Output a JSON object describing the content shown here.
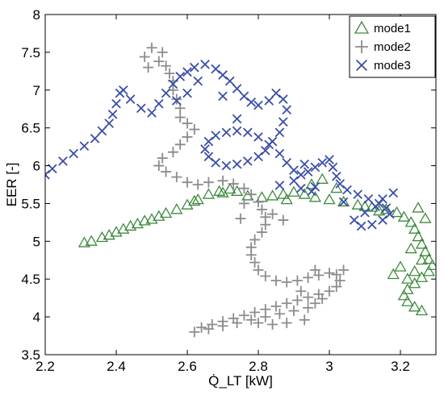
{
  "chart_data": {
    "type": "scatter",
    "title": "",
    "xlabel": "Q̇_LT [kW]",
    "ylabel": "EER [-]",
    "xlim": [
      2.2,
      3.3
    ],
    "ylim": [
      3.5,
      8
    ],
    "xticks": [
      2.2,
      2.4,
      2.6,
      2.8,
      3,
      3.2
    ],
    "yticks": [
      3.5,
      4,
      4.5,
      5,
      5.5,
      6,
      6.5,
      7,
      7.5,
      8
    ],
    "xtick_labels": [
      "2.2",
      "2.4",
      "2.6",
      "2.8",
      "3",
      "3.2"
    ],
    "ytick_labels": [
      "3.5",
      "4",
      "4.5",
      "5",
      "5.5",
      "6",
      "6.5",
      "7",
      "7.5",
      "8"
    ],
    "grid": false,
    "legend_position": "top-right",
    "series": [
      {
        "name": "mode1",
        "marker": "triangle",
        "color": "#3d8a3d",
        "points": [
          [
            2.31,
            4.98
          ],
          [
            2.33,
            5.0
          ],
          [
            2.36,
            5.05
          ],
          [
            2.4,
            5.12
          ],
          [
            2.44,
            5.2
          ],
          [
            2.48,
            5.27
          ],
          [
            2.52,
            5.33
          ],
          [
            2.54,
            5.37
          ],
          [
            2.57,
            5.42
          ],
          [
            2.6,
            5.48
          ],
          [
            2.63,
            5.55
          ],
          [
            2.66,
            5.62
          ],
          [
            2.69,
            5.66
          ],
          [
            2.72,
            5.69
          ],
          [
            2.74,
            5.66
          ],
          [
            2.77,
            5.6
          ],
          [
            2.81,
            5.58
          ],
          [
            2.84,
            5.6
          ],
          [
            2.87,
            5.62
          ],
          [
            2.9,
            5.65
          ],
          [
            2.93,
            5.62
          ],
          [
            2.96,
            5.58
          ],
          [
            3.0,
            5.55
          ],
          [
            3.04,
            5.52
          ],
          [
            3.08,
            5.48
          ],
          [
            3.12,
            5.45
          ],
          [
            3.16,
            5.42
          ],
          [
            3.19,
            5.38
          ],
          [
            3.21,
            5.32
          ],
          [
            3.23,
            5.25
          ],
          [
            3.24,
            5.16
          ],
          [
            3.25,
            5.06
          ],
          [
            3.26,
            4.96
          ],
          [
            3.27,
            4.86
          ],
          [
            3.28,
            4.76
          ],
          [
            3.29,
            4.68
          ],
          [
            3.28,
            4.6
          ],
          [
            3.26,
            4.52
          ],
          [
            3.24,
            4.44
          ],
          [
            3.22,
            4.36
          ],
          [
            3.21,
            4.28
          ],
          [
            3.22,
            4.2
          ],
          [
            3.24,
            4.13
          ],
          [
            3.26,
            4.08
          ],
          [
            3.24,
            4.6
          ],
          [
            3.22,
            4.5
          ],
          [
            3.2,
            4.66
          ],
          [
            3.18,
            4.56
          ],
          [
            3.25,
            5.44
          ],
          [
            3.27,
            5.3
          ],
          [
            3.23,
            4.9
          ],
          [
            3.26,
            4.75
          ],
          [
            2.95,
            5.75
          ],
          [
            2.98,
            5.82
          ],
          [
            3.02,
            5.7
          ],
          [
            2.88,
            5.55
          ],
          [
            2.7,
            5.64
          ],
          [
            2.62,
            5.53
          ],
          [
            2.5,
            5.29
          ],
          [
            2.46,
            5.23
          ],
          [
            2.38,
            5.08
          ],
          [
            2.42,
            5.16
          ],
          [
            3.14,
            5.4
          ],
          [
            3.1,
            5.46
          ]
        ]
      },
      {
        "name": "mode2",
        "marker": "plus",
        "color": "#8c8c8c",
        "points": [
          [
            2.52,
            7.38
          ],
          [
            2.54,
            7.32
          ],
          [
            2.55,
            7.22
          ],
          [
            2.56,
            7.12
          ],
          [
            2.56,
            7.0
          ],
          [
            2.57,
            6.88
          ],
          [
            2.58,
            6.76
          ],
          [
            2.58,
            6.64
          ],
          [
            2.6,
            6.56
          ],
          [
            2.62,
            6.48
          ],
          [
            2.6,
            6.38
          ],
          [
            2.58,
            6.28
          ],
          [
            2.56,
            6.18
          ],
          [
            2.53,
            6.1
          ],
          [
            2.52,
            6.0
          ],
          [
            2.54,
            5.92
          ],
          [
            2.57,
            5.85
          ],
          [
            2.6,
            5.78
          ],
          [
            2.63,
            5.75
          ],
          [
            2.66,
            5.78
          ],
          [
            2.7,
            5.8
          ],
          [
            2.73,
            5.76
          ],
          [
            2.76,
            5.7
          ],
          [
            2.78,
            5.62
          ],
          [
            2.8,
            5.52
          ],
          [
            2.81,
            5.42
          ],
          [
            2.82,
            5.32
          ],
          [
            2.82,
            5.22
          ],
          [
            2.81,
            5.12
          ],
          [
            2.79,
            5.02
          ],
          [
            2.78,
            4.92
          ],
          [
            2.78,
            4.82
          ],
          [
            2.79,
            4.72
          ],
          [
            2.8,
            4.62
          ],
          [
            2.82,
            4.54
          ],
          [
            2.85,
            4.48
          ],
          [
            2.88,
            4.46
          ],
          [
            2.91,
            4.48
          ],
          [
            2.94,
            4.52
          ],
          [
            2.97,
            4.55
          ],
          [
            3.0,
            4.58
          ],
          [
            3.02,
            4.56
          ],
          [
            3.03,
            4.48
          ],
          [
            3.02,
            4.4
          ],
          [
            3.0,
            4.34
          ],
          [
            2.97,
            4.3
          ],
          [
            2.94,
            4.26
          ],
          [
            2.91,
            4.22
          ],
          [
            2.88,
            4.18
          ],
          [
            2.85,
            4.14
          ],
          [
            2.82,
            4.1
          ],
          [
            2.79,
            4.06
          ],
          [
            2.76,
            4.02
          ],
          [
            2.73,
            3.98
          ],
          [
            2.7,
            3.94
          ],
          [
            2.67,
            3.9
          ],
          [
            2.64,
            3.86
          ],
          [
            2.62,
            3.8
          ],
          [
            2.66,
            3.84
          ],
          [
            2.7,
            3.88
          ],
          [
            2.74,
            3.92
          ],
          [
            2.78,
            3.96
          ],
          [
            2.82,
            4.0
          ],
          [
            2.86,
            4.04
          ],
          [
            2.9,
            4.08
          ],
          [
            2.94,
            4.12
          ],
          [
            2.96,
            4.18
          ],
          [
            2.98,
            4.24
          ],
          [
            2.93,
            3.96
          ],
          [
            2.88,
            3.92
          ],
          [
            2.84,
            3.9
          ],
          [
            2.8,
            3.92
          ],
          [
            2.53,
            7.5
          ],
          [
            2.5,
            7.56
          ],
          [
            2.48,
            7.44
          ],
          [
            2.49,
            7.3
          ],
          [
            2.92,
            4.34
          ],
          [
            2.96,
            4.62
          ],
          [
            3.04,
            4.62
          ],
          [
            2.75,
            5.3
          ],
          [
            2.84,
            5.36
          ],
          [
            2.87,
            5.28
          ],
          [
            2.76,
            5.5
          ]
        ]
      },
      {
        "name": "mode3",
        "marker": "x",
        "color": "#3a4ea8",
        "points": [
          [
            2.2,
            5.88
          ],
          [
            2.22,
            5.96
          ],
          [
            2.25,
            6.06
          ],
          [
            2.28,
            6.16
          ],
          [
            2.31,
            6.26
          ],
          [
            2.34,
            6.36
          ],
          [
            2.36,
            6.46
          ],
          [
            2.38,
            6.56
          ],
          [
            2.39,
            6.68
          ],
          [
            2.4,
            6.82
          ],
          [
            2.41,
            6.96
          ],
          [
            2.42,
            7.0
          ],
          [
            2.44,
            6.88
          ],
          [
            2.47,
            6.76
          ],
          [
            2.5,
            6.7
          ],
          [
            2.52,
            6.82
          ],
          [
            2.54,
            6.96
          ],
          [
            2.56,
            7.08
          ],
          [
            2.58,
            7.18
          ],
          [
            2.6,
            7.24
          ],
          [
            2.62,
            7.3
          ],
          [
            2.65,
            7.34
          ],
          [
            2.68,
            7.28
          ],
          [
            2.7,
            7.2
          ],
          [
            2.72,
            7.12
          ],
          [
            2.74,
            7.02
          ],
          [
            2.76,
            6.92
          ],
          [
            2.78,
            6.84
          ],
          [
            2.8,
            6.8
          ],
          [
            2.83,
            6.86
          ],
          [
            2.85,
            6.96
          ],
          [
            2.87,
            6.88
          ],
          [
            2.88,
            6.74
          ],
          [
            2.87,
            6.58
          ],
          [
            2.86,
            6.44
          ],
          [
            2.84,
            6.32
          ],
          [
            2.82,
            6.2
          ],
          [
            2.8,
            6.12
          ],
          [
            2.77,
            6.06
          ],
          [
            2.74,
            6.02
          ],
          [
            2.71,
            6.0
          ],
          [
            2.68,
            6.04
          ],
          [
            2.66,
            6.12
          ],
          [
            2.65,
            6.22
          ],
          [
            2.66,
            6.32
          ],
          [
            2.68,
            6.4
          ],
          [
            2.71,
            6.44
          ],
          [
            2.74,
            6.46
          ],
          [
            2.77,
            6.44
          ],
          [
            2.8,
            6.38
          ],
          [
            2.83,
            6.28
          ],
          [
            2.86,
            6.16
          ],
          [
            2.88,
            6.04
          ],
          [
            2.9,
            5.94
          ],
          [
            2.92,
            5.88
          ],
          [
            2.94,
            5.92
          ],
          [
            2.96,
            5.98
          ],
          [
            2.98,
            6.04
          ],
          [
            3.0,
            6.08
          ],
          [
            3.01,
            5.98
          ],
          [
            3.02,
            5.86
          ],
          [
            3.03,
            5.76
          ],
          [
            3.05,
            5.68
          ],
          [
            3.08,
            5.62
          ],
          [
            3.11,
            5.56
          ],
          [
            3.14,
            5.5
          ],
          [
            3.16,
            5.44
          ],
          [
            3.17,
            5.36
          ],
          [
            3.15,
            5.28
          ],
          [
            3.12,
            5.22
          ],
          [
            3.09,
            5.2
          ],
          [
            3.07,
            5.28
          ],
          [
            3.1,
            5.38
          ],
          [
            3.13,
            5.46
          ],
          [
            3.15,
            5.56
          ],
          [
            3.18,
            5.64
          ],
          [
            2.96,
            5.72
          ],
          [
            2.92,
            5.7
          ],
          [
            2.86,
            5.74
          ],
          [
            2.9,
            5.8
          ],
          [
            2.63,
            7.12
          ],
          [
            2.6,
            6.96
          ],
          [
            2.57,
            6.86
          ],
          [
            2.7,
            6.92
          ],
          [
            2.74,
            6.62
          ],
          [
            2.95,
            5.66
          ],
          [
            3.04,
            5.52
          ],
          [
            2.93,
            6.02
          ]
        ]
      }
    ]
  }
}
